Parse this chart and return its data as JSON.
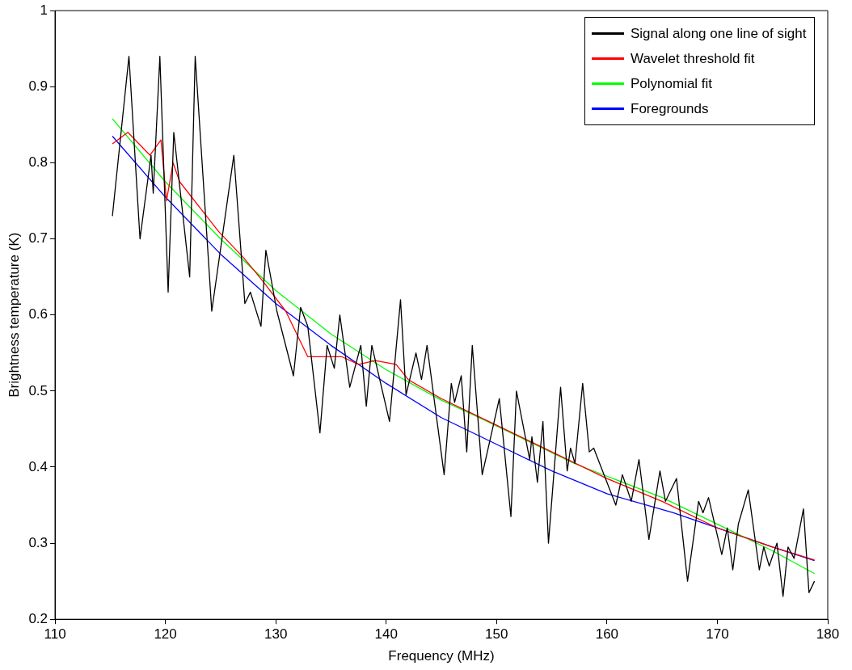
{
  "chart_data": {
    "type": "line",
    "xlabel": "Frequency (MHz)",
    "ylabel": "Brightness temperature (K)",
    "xlim": [
      110,
      180
    ],
    "xticks": [
      110,
      120,
      130,
      140,
      150,
      160,
      170,
      180
    ],
    "ylim": [
      0.2,
      1
    ],
    "yticks": [
      0.2,
      0.3,
      0.4,
      0.5,
      0.6,
      0.7,
      0.8,
      0.9,
      1
    ],
    "grid": false,
    "legend": "top right",
    "marker": "none",
    "line_style": "solid",
    "series": [
      {
        "name": "Signal along one line of sight",
        "color": "#000000",
        "x": [
          115.2,
          116.7,
          117.7,
          118.7,
          118.9,
          119.5,
          120.25,
          120.76,
          122.2,
          122.7,
          124.2,
          126.2,
          127.2,
          127.7,
          128.66,
          129.1,
          130.1,
          131.6,
          132.25,
          132.9,
          134.0,
          134.65,
          135.3,
          135.8,
          136.7,
          137.7,
          138.2,
          138.7,
          140.3,
          141.3,
          141.8,
          142.7,
          143.2,
          143.7,
          145.25,
          145.9,
          146.2,
          146.8,
          147.3,
          147.8,
          148.7,
          150.25,
          151.3,
          151.8,
          153.0,
          153.2,
          153.7,
          154.2,
          154.7,
          155.8,
          156.4,
          156.7,
          157.1,
          157.8,
          158.4,
          158.8,
          160.8,
          161.4,
          162.2,
          162.9,
          163.8,
          164.8,
          165.3,
          166.3,
          167.3,
          168.3,
          168.7,
          169.2,
          170.4,
          170.9,
          171.4,
          171.9,
          172.8,
          173.8,
          174.2,
          174.7,
          175.4,
          175.95,
          176.4,
          176.95,
          177.8,
          178.3,
          178.8
        ],
        "values": [
          0.73,
          0.94,
          0.7,
          0.81,
          0.76,
          0.94,
          0.63,
          0.84,
          0.65,
          0.94,
          0.605,
          0.81,
          0.615,
          0.63,
          0.585,
          0.685,
          0.605,
          0.52,
          0.61,
          0.585,
          0.445,
          0.56,
          0.53,
          0.6,
          0.505,
          0.56,
          0.48,
          0.56,
          0.46,
          0.62,
          0.495,
          0.55,
          0.515,
          0.56,
          0.39,
          0.51,
          0.485,
          0.52,
          0.42,
          0.56,
          0.39,
          0.49,
          0.335,
          0.5,
          0.41,
          0.44,
          0.38,
          0.46,
          0.3,
          0.505,
          0.395,
          0.425,
          0.405,
          0.51,
          0.42,
          0.425,
          0.35,
          0.39,
          0.355,
          0.41,
          0.305,
          0.395,
          0.355,
          0.385,
          0.25,
          0.355,
          0.34,
          0.36,
          0.285,
          0.32,
          0.265,
          0.325,
          0.37,
          0.265,
          0.295,
          0.27,
          0.3,
          0.23,
          0.295,
          0.28,
          0.345,
          0.235,
          0.25
        ]
      },
      {
        "name": "Wavelet threshold fit",
        "color": "#ff0000",
        "x": [
          115.2,
          116.6,
          118.6,
          119.6,
          120.1,
          120.7,
          121.3,
          124.8,
          127.1,
          128.8,
          130.9,
          132.9,
          136.0,
          137.5,
          139.0,
          140.9,
          142.0,
          145,
          150,
          155,
          160,
          165,
          170,
          175,
          178.8
        ],
        "values": [
          0.825,
          0.84,
          0.81,
          0.83,
          0.75,
          0.8,
          0.775,
          0.71,
          0.675,
          0.645,
          0.605,
          0.545,
          0.545,
          0.535,
          0.54,
          0.535,
          0.515,
          0.49,
          0.455,
          0.42,
          0.385,
          0.355,
          0.32,
          0.295,
          0.278
        ]
      },
      {
        "name": "Polynomial fit",
        "color": "#00ff00",
        "x": [
          115.2,
          120,
          125,
          130,
          135,
          140,
          145,
          148,
          157,
          160,
          165,
          170,
          175,
          178.8
        ],
        "values": [
          0.858,
          0.775,
          0.7,
          0.632,
          0.575,
          0.528,
          0.488,
          0.468,
          0.405,
          0.388,
          0.36,
          0.325,
          0.29,
          0.26
        ]
      },
      {
        "name": "Foregrounds",
        "color": "#0000ff",
        "x": [
          115.2,
          120,
          125,
          130,
          135,
          140,
          145,
          150,
          155,
          160,
          166,
          171,
          175,
          178.8
        ],
        "values": [
          0.835,
          0.755,
          0.68,
          0.615,
          0.56,
          0.51,
          0.465,
          0.43,
          0.395,
          0.365,
          0.34,
          0.315,
          0.295,
          0.277
        ]
      }
    ]
  }
}
